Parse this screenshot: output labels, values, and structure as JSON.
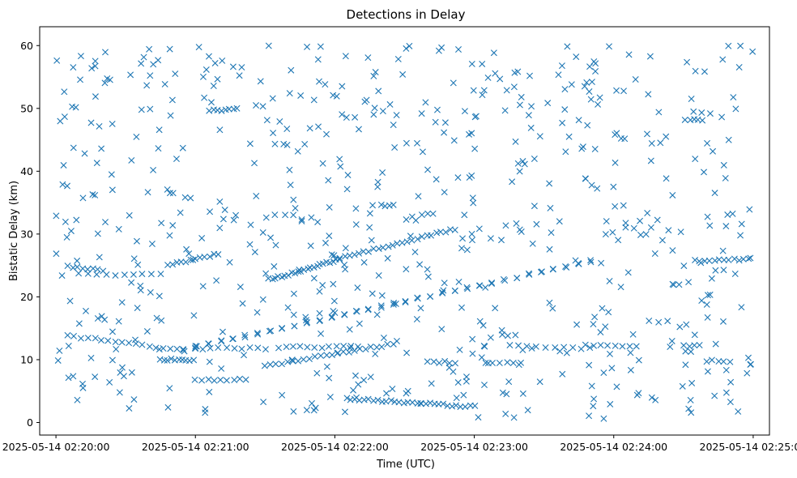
{
  "chart_data": {
    "type": "scatter",
    "title": "Detections in Delay",
    "xlabel": "Time (UTC)",
    "ylabel": "Bistatic Delay (km)",
    "marker": "x",
    "color": "#1f77b4",
    "grid": false,
    "x_ticks": [
      "2025-05-14 02:20:00",
      "2025-05-14 02:21:00",
      "2025-05-14 02:22:00",
      "2025-05-14 02:23:00",
      "2025-05-14 02:24:00",
      "2025-05-14 02:25:00"
    ],
    "y_ticks": [
      0,
      10,
      20,
      30,
      40,
      50,
      60
    ],
    "xlim": [
      "2025-05-14 02:19:53",
      "2025-05-14 02:25:07"
    ],
    "ylim": [
      -2,
      63
    ],
    "tracks": [
      {
        "x": [
          "2025-05-14 02:20:55",
          "2025-05-14 02:23:50"
        ],
        "y": [
          11.6,
          25.7
        ]
      },
      {
        "x": [
          "2025-05-14 02:20:55",
          "2025-05-14 02:23:50"
        ],
        "y": [
          11.6,
          25.7
        ]
      },
      {
        "x": [
          "2025-05-14 02:21:30",
          "2025-05-14 02:22:25"
        ],
        "y": [
          9.0,
          12.5
        ]
      },
      {
        "x": [
          "2025-05-14 02:21:33",
          "2025-05-14 02:22:02"
        ],
        "y": [
          22.8,
          26.0
        ]
      },
      {
        "x": [
          "2025-05-14 02:22:00",
          "2025-05-14 02:22:52"
        ],
        "y": [
          26.0,
          30.8
        ]
      },
      {
        "x": [
          "2025-05-14 02:22:05",
          "2025-05-14 02:23:00"
        ],
        "y": [
          3.8,
          2.5
        ]
      },
      {
        "x": [
          "2025-05-14 02:21:00",
          "2025-05-14 02:21:30"
        ],
        "y": [
          11.8,
          11.8
        ]
      },
      {
        "x": [
          "2025-05-14 02:20:05",
          "2025-05-14 02:20:20"
        ],
        "y": [
          24.8,
          24.2
        ]
      },
      {
        "x": [
          "2025-05-14 02:20:10",
          "2025-05-14 02:20:45"
        ],
        "y": [
          23.6,
          23.5
        ]
      },
      {
        "x": [
          "2025-05-14 02:20:05",
          "2025-05-14 02:20:55"
        ],
        "y": [
          13.8,
          11.5
        ]
      },
      {
        "x": [
          "2025-05-14 02:20:45",
          "2025-05-14 02:20:59"
        ],
        "y": [
          10.0,
          10.0
        ]
      },
      {
        "x": [
          "2025-05-14 02:20:48",
          "2025-05-14 02:21:10"
        ],
        "y": [
          25.0,
          26.8
        ]
      },
      {
        "x": [
          "2025-05-14 02:21:06",
          "2025-05-14 02:21:18"
        ],
        "y": [
          49.6,
          50.0
        ]
      },
      {
        "x": [
          "2025-05-14 02:21:00",
          "2025-05-14 02:21:22"
        ],
        "y": [
          6.8,
          6.8
        ]
      },
      {
        "x": [
          "2025-05-14 02:23:05",
          "2025-05-14 02:23:20"
        ],
        "y": [
          9.6,
          9.6
        ]
      },
      {
        "x": [
          "2025-05-14 02:23:15",
          "2025-05-14 02:23:50"
        ],
        "y": [
          12.2,
          11.8
        ]
      },
      {
        "x": [
          "2025-05-14 02:23:48",
          "2025-05-14 02:24:10"
        ],
        "y": [
          12.2,
          12.2
        ]
      },
      {
        "x": [
          "2025-05-14 02:24:30",
          "2025-05-14 02:24:37"
        ],
        "y": [
          12.2,
          12.2
        ]
      },
      {
        "x": [
          "2025-05-14 02:24:35",
          "2025-05-14 02:24:58"
        ],
        "y": [
          25.8,
          26.0
        ]
      },
      {
        "x": [
          "2025-05-14 02:24:40",
          "2025-05-14 02:24:50"
        ],
        "y": [
          9.8,
          9.8
        ]
      },
      {
        "x": [
          "2025-05-14 02:24:33",
          "2025-05-14 02:24:38"
        ],
        "y": [
          48.1,
          48.1
        ]
      },
      {
        "x": [
          "2025-05-14 02:22:40",
          "2025-05-14 02:22:52"
        ],
        "y": [
          9.6,
          9.6
        ]
      },
      {
        "x": [
          "2025-05-14 02:22:20",
          "2025-05-14 02:22:25"
        ],
        "y": [
          34.6,
          34.6
        ]
      },
      {
        "x": [
          "2025-05-14 02:21:36",
          "2025-05-14 02:22:10"
        ],
        "y": [
          12.0,
          12.0
        ]
      }
    ],
    "track_points": [
      34,
      34,
      24,
      22,
      26,
      30,
      10,
      8,
      10,
      18,
      10,
      12,
      8,
      9,
      6,
      10,
      8,
      4,
      12,
      5,
      4,
      6,
      4,
      12
    ],
    "noise": {
      "count": 640,
      "x_range": [
        "2025-05-14 02:20:00",
        "2025-05-14 02:25:00"
      ],
      "y_range": [
        0.5,
        60
      ]
    }
  }
}
